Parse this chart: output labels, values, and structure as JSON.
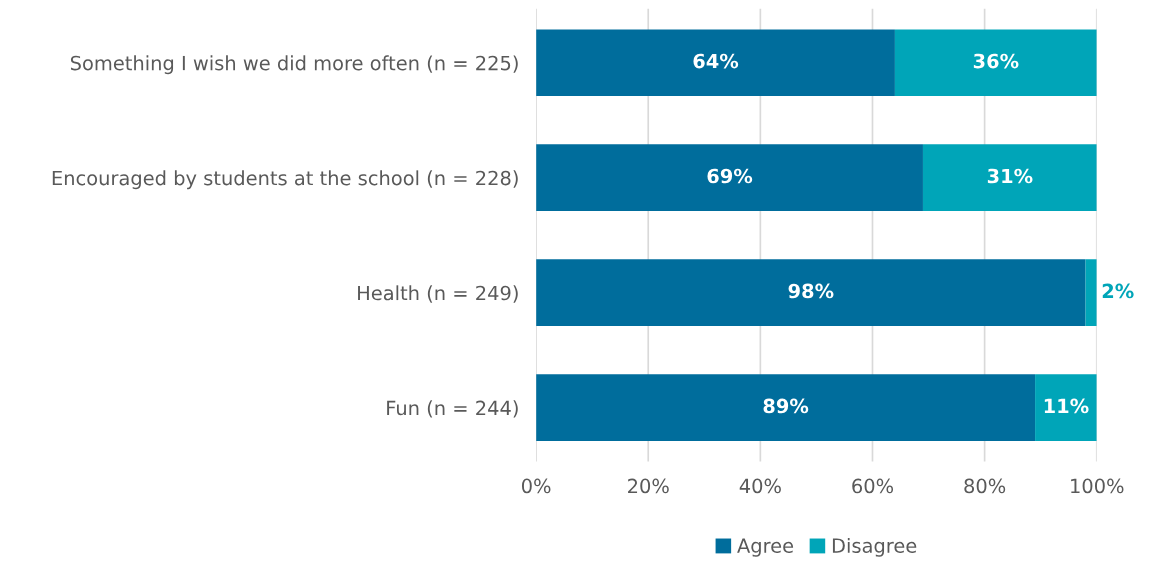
{
  "chart_data": {
    "type": "bar",
    "orientation": "horizontal",
    "stacked": true,
    "categories": [
      "Something I wish we did more often (n = 225)",
      "Encouraged by students at the school (n = 228)",
      "Health (n = 249)",
      "Fun (n = 244)"
    ],
    "series": [
      {
        "name": "Agree",
        "color": "#006d9c",
        "values": [
          64,
          69,
          98,
          89
        ],
        "value_labels": [
          "64%",
          "69%",
          "98%",
          "89%"
        ]
      },
      {
        "name": "Disagree",
        "color": "#00a5b8",
        "values": [
          36,
          31,
          2,
          11
        ],
        "value_labels": [
          "36%",
          "31%",
          "2%",
          "11%"
        ]
      }
    ],
    "xlim": [
      0,
      100
    ],
    "xticks": [
      {
        "value": 0,
        "label": "0%"
      },
      {
        "value": 20,
        "label": "20%"
      },
      {
        "value": 40,
        "label": "40%"
      },
      {
        "value": 60,
        "label": "60%"
      },
      {
        "value": 80,
        "label": "80%"
      },
      {
        "value": 100,
        "label": "100%"
      }
    ],
    "grid": "x",
    "legend": "bottom"
  }
}
